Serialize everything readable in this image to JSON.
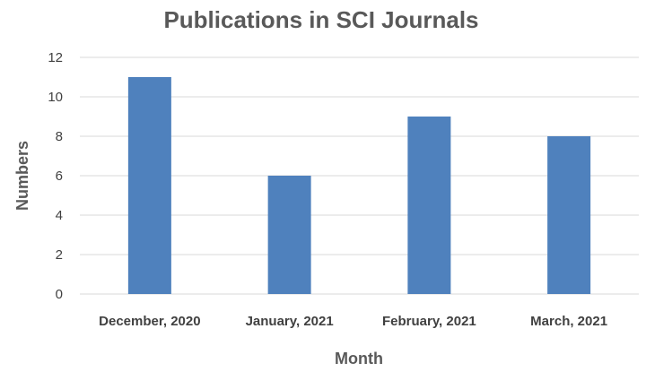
{
  "chart_data": {
    "type": "bar",
    "title": "Publications in SCI Journals",
    "xlabel": "Month",
    "ylabel": "Numbers",
    "categories": [
      "December, 2020",
      "January, 2021",
      "February, 2021",
      "March, 2021"
    ],
    "series": [
      {
        "values": [
          11,
          6,
          9,
          8
        ],
        "color": "#4f81bd"
      }
    ],
    "ylim": [
      0,
      12
    ],
    "yticks": [
      0,
      2,
      4,
      6,
      8,
      10,
      12
    ],
    "grid": true,
    "legend": "none"
  }
}
